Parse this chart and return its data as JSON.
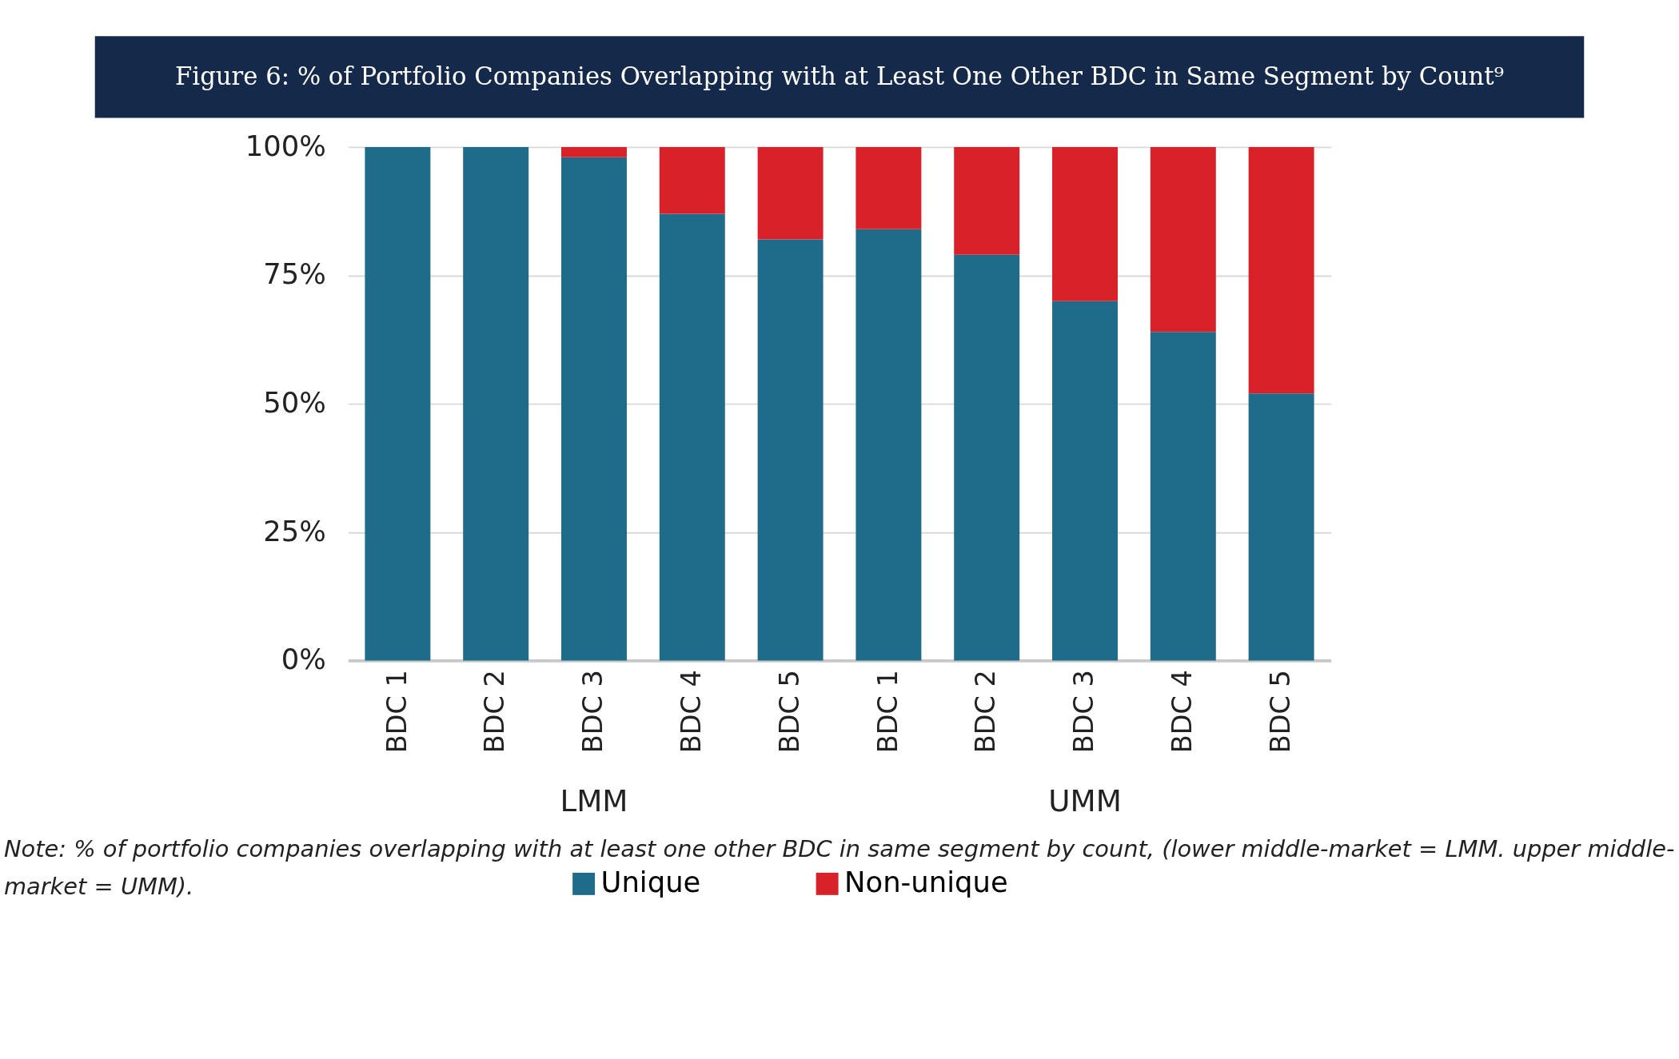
{
  "chart_data": {
    "type": "bar",
    "stacked": true,
    "title": "Figure 6: % of Portfolio Companies Overlapping with at Least One Other BDC in Same Segment by Count⁹",
    "categories": [
      "BDC 1",
      "BDC 2",
      "BDC 3",
      "BDC 4",
      "BDC 5",
      "BDC 1",
      "BDC 2",
      "BDC 3",
      "BDC 4",
      "BDC 5"
    ],
    "series": [
      {
        "name": "Unique",
        "color": "#1f6b8a",
        "values": [
          100,
          100,
          98,
          87,
          82,
          84,
          79,
          70,
          64,
          52
        ]
      },
      {
        "name": "Non-unique",
        "color": "#d9212a",
        "values": [
          0,
          0,
          2,
          13,
          18,
          16,
          21,
          30,
          36,
          48
        ]
      }
    ],
    "ylim": [
      0,
      100
    ],
    "yticks": [
      {
        "value": 0,
        "label": "0%"
      },
      {
        "value": 25,
        "label": "25%"
      },
      {
        "value": 50,
        "label": "50%"
      },
      {
        "value": 75,
        "label": "75%"
      },
      {
        "value": 100,
        "label": "100%"
      }
    ],
    "grid": "y",
    "legend": "bottom",
    "annotations": [
      "LMM",
      "UMM",
      "Note: % of portfolio companies overlapping with at least one other BDC in same segment by count, (lower middle-market = LMM. upper middle-market = UMM)."
    ]
  }
}
